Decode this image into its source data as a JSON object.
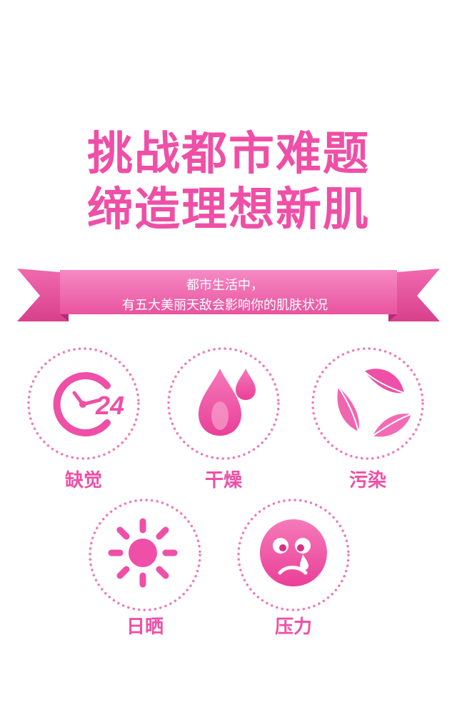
{
  "title": {
    "line1": "挑战都市难题",
    "line2": "缔造理想新肌"
  },
  "banner": {
    "line1": "都市生活中，",
    "line2": "有五大美丽天敌会影响你的肌肤状况"
  },
  "items": [
    {
      "label": "缺觉",
      "icon": "clock-24-icon",
      "clock_text": "24"
    },
    {
      "label": "干燥",
      "icon": "water-drop-icon"
    },
    {
      "label": "污染",
      "icon": "recycle-leaves-icon"
    },
    {
      "label": "日晒",
      "icon": "sun-icon"
    },
    {
      "label": "压力",
      "icon": "sad-face-icon"
    }
  ],
  "colors": {
    "pink": "#ef4fa6",
    "pink_light": "#f7a3cd",
    "pink_dark": "#d92f86"
  }
}
